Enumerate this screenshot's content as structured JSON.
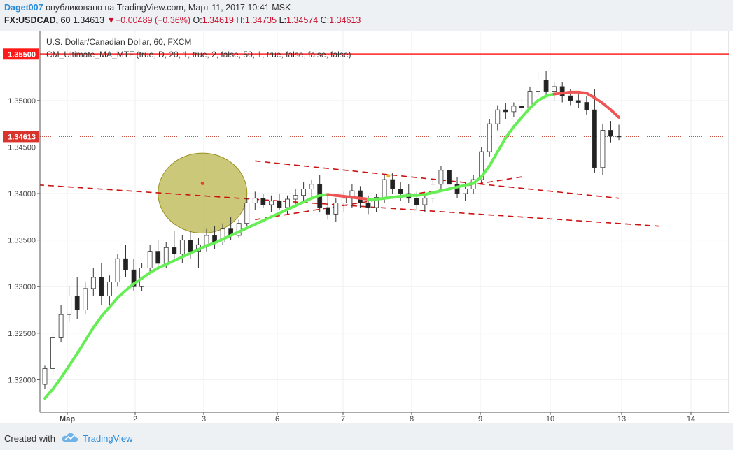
{
  "header": {
    "user": "Daget007",
    "published": "опубликовано на TradingView.com, Март 11, 2017 10:41 MSK",
    "symbol": "FX:USDCAD, 60",
    "last": "1.34613",
    "change": "−0.00489 (−0.36%)",
    "o_label": "O:",
    "o_value": "1.34619",
    "h_label": "H:",
    "h_value": "1.34735",
    "l_label": "L:",
    "l_value": "1.34574",
    "c_label": "C:",
    "c_value": "1.34613"
  },
  "footer": {
    "created_with": "Created with",
    "brand": "TradingView"
  },
  "colors": {
    "up": "#2e7d32",
    "down": "#b71c1c",
    "ma_up": "#66ee55",
    "ma_down": "#ee5555",
    "trend": "#cc1111",
    "circle_fill": "#b5b240",
    "accent": "#ff1111"
  },
  "chart_data": {
    "type": "candlestick",
    "instrument": "U.S. Dollar/Canadian Dollar, 60, FXCM",
    "indicator": "CM_Ultimate_MA_MTF (true, D, 20, 1, true, 2, false, 50, 1, true, false, false, false)",
    "ylim": [
      1.3165,
      1.3575
    ],
    "y_ticks": [
      "1.32000",
      "1.32500",
      "1.33000",
      "1.33500",
      "1.34000",
      "1.34500",
      "1.35000"
    ],
    "x_ticks": [
      "Мар",
      "2",
      "3",
      "6",
      "7",
      "8",
      "9",
      "10",
      "13",
      "14"
    ],
    "price_tags": [
      {
        "label": "1.35500",
        "value": 1.355
      },
      {
        "label": "1.34613",
        "value": 1.34613
      }
    ],
    "candles": [
      [
        1.3195,
        1.3215,
        1.319,
        1.3212
      ],
      [
        1.3212,
        1.325,
        1.3205,
        1.3245
      ],
      [
        1.3245,
        1.328,
        1.324,
        1.327
      ],
      [
        1.327,
        1.33,
        1.3262,
        1.329
      ],
      [
        1.329,
        1.331,
        1.3265,
        1.3275
      ],
      [
        1.3275,
        1.3305,
        1.327,
        1.3298
      ],
      [
        1.3298,
        1.332,
        1.329,
        1.331
      ],
      [
        1.331,
        1.3325,
        1.328,
        1.329
      ],
      [
        1.329,
        1.3312,
        1.328,
        1.3305
      ],
      [
        1.3305,
        1.3335,
        1.33,
        1.333
      ],
      [
        1.333,
        1.3345,
        1.331,
        1.3318
      ],
      [
        1.3318,
        1.333,
        1.3295,
        1.33
      ],
      [
        1.33,
        1.3325,
        1.3295,
        1.332
      ],
      [
        1.332,
        1.3345,
        1.3315,
        1.3338
      ],
      [
        1.3338,
        1.335,
        1.332,
        1.3325
      ],
      [
        1.3325,
        1.3348,
        1.332,
        1.3342
      ],
      [
        1.3342,
        1.336,
        1.333,
        1.3335
      ],
      [
        1.3335,
        1.3355,
        1.3325,
        1.335
      ],
      [
        1.335,
        1.336,
        1.333,
        1.3338
      ],
      [
        1.3338,
        1.3352,
        1.332,
        1.3345
      ],
      [
        1.3345,
        1.3362,
        1.3338,
        1.3355
      ],
      [
        1.3355,
        1.3365,
        1.334,
        1.3348
      ],
      [
        1.3348,
        1.3368,
        1.3345,
        1.3362
      ],
      [
        1.3362,
        1.3375,
        1.335,
        1.3355
      ],
      [
        1.3355,
        1.3372,
        1.3352,
        1.3368
      ],
      [
        1.3368,
        1.3395,
        1.3365,
        1.339
      ],
      [
        1.339,
        1.3402,
        1.3382,
        1.3395
      ],
      [
        1.3395,
        1.34,
        1.3385,
        1.3388
      ],
      [
        1.3388,
        1.3398,
        1.338,
        1.3392
      ],
      [
        1.3392,
        1.34,
        1.3382,
        1.3385
      ],
      [
        1.3385,
        1.3398,
        1.3378,
        1.3394
      ],
      [
        1.3394,
        1.3405,
        1.3388,
        1.3398
      ],
      [
        1.3398,
        1.3412,
        1.339,
        1.3405
      ],
      [
        1.3405,
        1.3415,
        1.3395,
        1.341
      ],
      [
        1.341,
        1.342,
        1.338,
        1.3385
      ],
      [
        1.3385,
        1.34,
        1.3372,
        1.3378
      ],
      [
        1.3378,
        1.3395,
        1.337,
        1.339
      ],
      [
        1.339,
        1.3402,
        1.338,
        1.3395
      ],
      [
        1.3395,
        1.341,
        1.3385,
        1.3403
      ],
      [
        1.3403,
        1.3408,
        1.3385,
        1.339
      ],
      [
        1.339,
        1.3398,
        1.3378,
        1.3385
      ],
      [
        1.3385,
        1.34,
        1.338,
        1.3396
      ],
      [
        1.3396,
        1.342,
        1.339,
        1.3415
      ],
      [
        1.3415,
        1.3422,
        1.34,
        1.3405
      ],
      [
        1.3405,
        1.3412,
        1.3392,
        1.34
      ],
      [
        1.34,
        1.341,
        1.339,
        1.3395
      ],
      [
        1.3395,
        1.3402,
        1.3382,
        1.3388
      ],
      [
        1.3388,
        1.3398,
        1.338,
        1.3395
      ],
      [
        1.3395,
        1.3415,
        1.339,
        1.341
      ],
      [
        1.341,
        1.343,
        1.3405,
        1.3425
      ],
      [
        1.3425,
        1.3435,
        1.3405,
        1.341
      ],
      [
        1.341,
        1.3418,
        1.3395,
        1.34
      ],
      [
        1.34,
        1.3412,
        1.3392,
        1.3405
      ],
      [
        1.3405,
        1.342,
        1.34,
        1.3415
      ],
      [
        1.3415,
        1.345,
        1.341,
        1.3445
      ],
      [
        1.3445,
        1.348,
        1.344,
        1.3475
      ],
      [
        1.3475,
        1.3495,
        1.3468,
        1.349
      ],
      [
        1.349,
        1.3497,
        1.348,
        1.3488
      ],
      [
        1.3488,
        1.3498,
        1.3482,
        1.3494
      ],
      [
        1.3494,
        1.3502,
        1.3488,
        1.3492
      ],
      [
        1.3492,
        1.3515,
        1.349,
        1.351
      ],
      [
        1.351,
        1.353,
        1.3505,
        1.3522
      ],
      [
        1.3522,
        1.3532,
        1.3505,
        1.351
      ],
      [
        1.351,
        1.352,
        1.35,
        1.3515
      ],
      [
        1.3515,
        1.352,
        1.3498,
        1.3505
      ],
      [
        1.3505,
        1.3512,
        1.3495,
        1.35
      ],
      [
        1.35,
        1.3508,
        1.3492,
        1.3498
      ],
      [
        1.3498,
        1.3505,
        1.3485,
        1.349
      ],
      [
        1.349,
        1.3512,
        1.3422,
        1.3428
      ],
      [
        1.3428,
        1.3475,
        1.342,
        1.3468
      ],
      [
        1.3468,
        1.3478,
        1.3455,
        1.3462
      ],
      [
        1.3462,
        1.3474,
        1.3457,
        1.3461
      ]
    ],
    "ma": [
      1.318,
      1.319,
      1.3202,
      1.3215,
      1.3228,
      1.3242,
      1.3256,
      1.3268,
      1.3278,
      1.3288,
      1.3296,
      1.3303,
      1.3309,
      1.3315,
      1.332,
      1.3324,
      1.3328,
      1.3332,
      1.3336,
      1.334,
      1.3344,
      1.3347,
      1.3351,
      1.3355,
      1.3359,
      1.3363,
      1.3367,
      1.3371,
      1.3375,
      1.3379,
      1.3383,
      1.3387,
      1.3391,
      1.3395,
      1.3398,
      1.3399,
      1.3398,
      1.3397,
      1.3396,
      1.3395,
      1.3394,
      1.3394,
      1.3395,
      1.3396,
      1.3397,
      1.3398,
      1.3398,
      1.3399,
      1.3401,
      1.3403,
      1.3405,
      1.3407,
      1.3409,
      1.3411,
      1.3418,
      1.343,
      1.3445,
      1.346,
      1.3472,
      1.3482,
      1.3492,
      1.35,
      1.3505,
      1.3507,
      1.3508,
      1.3509,
      1.3509,
      1.3508,
      1.3503,
      1.3497,
      1.349,
      1.3482
    ],
    "ma_down_ranges": [
      [
        35,
        40
      ],
      [
        63,
        71
      ]
    ],
    "trendlines": [
      {
        "from": [
          -2,
          1.341
        ],
        "to": [
          76,
          1.3365
        ]
      },
      {
        "from": [
          26,
          1.3435
        ],
        "to": [
          71,
          1.3395
        ]
      },
      {
        "from": [
          26,
          1.3372
        ],
        "to": [
          59,
          1.3418
        ]
      }
    ],
    "circle": {
      "center_index": 19.5,
      "center_value": 1.34005,
      "radius_index": 5.5,
      "radius_value": 0.0043
    }
  }
}
